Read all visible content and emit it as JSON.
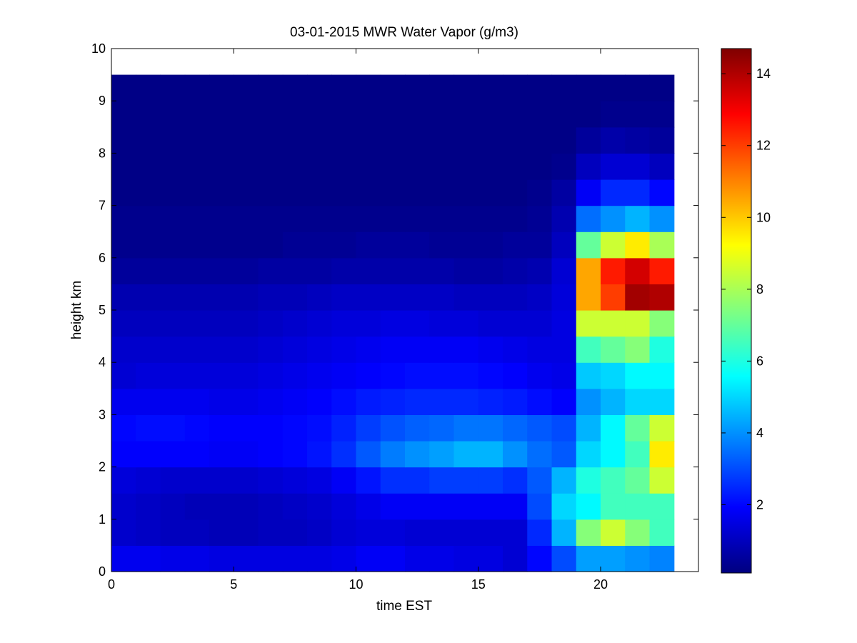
{
  "chart_data": {
    "type": "heatmap",
    "title": "03-01-2015 MWR Water Vapor (g/m3)",
    "xlabel": "time EST",
    "ylabel": "height km",
    "xlim": [
      0,
      24
    ],
    "ylim": [
      0,
      10
    ],
    "x_ticks": [
      "0",
      "5",
      "10",
      "15",
      "20"
    ],
    "y_ticks": [
      "0",
      "1",
      "2",
      "3",
      "4",
      "5",
      "6",
      "7",
      "8",
      "9",
      "10"
    ],
    "colorbar": {
      "colormap": "jet",
      "clim": [
        0.1,
        14.7
      ],
      "ticks": [
        "2",
        "4",
        "6",
        "8",
        "10",
        "12",
        "14"
      ]
    },
    "x": [
      0.5,
      1.5,
      2.5,
      3.5,
      4.5,
      5.5,
      6.5,
      7.5,
      8.5,
      9.5,
      10.5,
      11.5,
      12.5,
      13.5,
      14.5,
      15.5,
      16.5,
      17.5,
      18.5,
      19.5,
      20.5,
      21.5,
      22.5
    ],
    "y": [
      0.25,
      0.75,
      1.25,
      1.75,
      2.25,
      2.75,
      3.25,
      3.75,
      4.25,
      4.75,
      5.25,
      5.75,
      6.25,
      6.75,
      7.25,
      7.75,
      8.25,
      8.75,
      9.25
    ],
    "z": [
      [
        1.7,
        1.7,
        1.6,
        1.6,
        1.5,
        1.5,
        1.5,
        1.5,
        1.5,
        1.6,
        1.8,
        1.8,
        1.6,
        1.6,
        1.5,
        1.5,
        1.3,
        2.0,
        3.0,
        4.2,
        4.2,
        4.0,
        3.8
      ],
      [
        1.2,
        1.1,
        1.0,
        1.0,
        0.9,
        0.9,
        1.0,
        1.0,
        1.1,
        1.3,
        1.4,
        1.4,
        1.3,
        1.3,
        1.3,
        1.3,
        1.3,
        2.5,
        4.5,
        7.5,
        8.5,
        7.5,
        6.5
      ],
      [
        1.2,
        1.1,
        1.0,
        0.9,
        0.9,
        0.9,
        1.0,
        1.1,
        1.2,
        1.4,
        1.6,
        1.8,
        1.8,
        1.8,
        1.8,
        1.8,
        1.8,
        3.0,
        5.0,
        5.5,
        6.5,
        6.5,
        6.5
      ],
      [
        1.4,
        1.3,
        1.2,
        1.2,
        1.2,
        1.2,
        1.3,
        1.4,
        1.5,
        1.8,
        2.2,
        2.6,
        2.6,
        2.8,
        2.8,
        2.8,
        2.6,
        3.2,
        4.5,
        6.0,
        6.5,
        7.0,
        8.5
      ],
      [
        1.9,
        1.9,
        1.9,
        1.9,
        1.8,
        1.8,
        1.9,
        2.0,
        2.2,
        2.6,
        3.2,
        3.7,
        4.0,
        4.2,
        4.5,
        4.5,
        4.0,
        3.5,
        3.2,
        5.0,
        5.5,
        6.5,
        9.5
      ],
      [
        2.0,
        2.1,
        2.1,
        2.0,
        1.9,
        1.9,
        1.9,
        2.0,
        2.1,
        2.4,
        2.8,
        3.1,
        3.3,
        3.4,
        3.6,
        3.6,
        3.4,
        3.2,
        3.0,
        4.5,
        5.5,
        7.0,
        8.5
      ],
      [
        1.7,
        1.7,
        1.7,
        1.7,
        1.6,
        1.6,
        1.7,
        1.8,
        1.9,
        2.1,
        2.3,
        2.4,
        2.5,
        2.5,
        2.5,
        2.4,
        2.3,
        2.1,
        1.9,
        4.0,
        4.5,
        5.0,
        5.0
      ],
      [
        1.3,
        1.4,
        1.4,
        1.4,
        1.4,
        1.4,
        1.5,
        1.6,
        1.7,
        1.8,
        1.9,
        2.0,
        2.1,
        2.1,
        2.1,
        2.0,
        1.9,
        1.7,
        1.6,
        4.8,
        5.0,
        5.5,
        5.5
      ],
      [
        1.2,
        1.2,
        1.2,
        1.2,
        1.2,
        1.2,
        1.3,
        1.4,
        1.5,
        1.6,
        1.7,
        1.8,
        1.8,
        1.8,
        1.8,
        1.7,
        1.6,
        1.5,
        1.5,
        6.5,
        7.0,
        7.5,
        6.0
      ],
      [
        1.0,
        1.0,
        1.0,
        1.0,
        1.0,
        1.0,
        1.1,
        1.2,
        1.3,
        1.4,
        1.4,
        1.5,
        1.5,
        1.4,
        1.4,
        1.3,
        1.3,
        1.3,
        1.5,
        8.5,
        8.5,
        8.5,
        7.5
      ],
      [
        0.8,
        0.8,
        0.8,
        0.8,
        0.8,
        0.8,
        0.9,
        0.9,
        1.0,
        1.1,
        1.1,
        1.1,
        1.1,
        1.1,
        1.0,
        1.0,
        1.0,
        1.1,
        1.4,
        10.5,
        12.0,
        14.2,
        14.0
      ],
      [
        0.5,
        0.5,
        0.5,
        0.5,
        0.5,
        0.5,
        0.6,
        0.6,
        0.6,
        0.7,
        0.7,
        0.7,
        0.7,
        0.7,
        0.6,
        0.6,
        0.7,
        0.8,
        1.3,
        10.5,
        12.5,
        13.5,
        12.5
      ],
      [
        0.3,
        0.3,
        0.3,
        0.3,
        0.3,
        0.3,
        0.3,
        0.4,
        0.4,
        0.4,
        0.5,
        0.5,
        0.5,
        0.4,
        0.4,
        0.4,
        0.5,
        0.5,
        1.0,
        7.0,
        8.5,
        9.5,
        8.0
      ],
      [
        0.3,
        0.3,
        0.3,
        0.3,
        0.3,
        0.3,
        0.3,
        0.3,
        0.3,
        0.3,
        0.3,
        0.3,
        0.3,
        0.3,
        0.3,
        0.3,
        0.3,
        0.4,
        0.8,
        3.5,
        4.0,
        4.5,
        4.0
      ],
      [
        0.2,
        0.2,
        0.2,
        0.2,
        0.2,
        0.2,
        0.2,
        0.2,
        0.2,
        0.2,
        0.2,
        0.2,
        0.2,
        0.2,
        0.2,
        0.2,
        0.2,
        0.3,
        0.6,
        1.8,
        2.5,
        2.5,
        2.0
      ],
      [
        0.2,
        0.2,
        0.2,
        0.2,
        0.2,
        0.2,
        0.2,
        0.2,
        0.2,
        0.2,
        0.2,
        0.2,
        0.2,
        0.2,
        0.2,
        0.2,
        0.2,
        0.2,
        0.3,
        1.0,
        1.3,
        1.3,
        1.0
      ],
      [
        0.2,
        0.2,
        0.2,
        0.2,
        0.2,
        0.2,
        0.2,
        0.2,
        0.2,
        0.2,
        0.2,
        0.2,
        0.2,
        0.2,
        0.2,
        0.2,
        0.2,
        0.2,
        0.2,
        0.5,
        0.7,
        0.6,
        0.5
      ],
      [
        0.2,
        0.2,
        0.2,
        0.2,
        0.2,
        0.2,
        0.2,
        0.2,
        0.2,
        0.2,
        0.2,
        0.2,
        0.2,
        0.2,
        0.2,
        0.2,
        0.2,
        0.2,
        0.2,
        0.2,
        0.3,
        0.3,
        0.3
      ],
      [
        0.2,
        0.2,
        0.2,
        0.2,
        0.2,
        0.2,
        0.2,
        0.2,
        0.2,
        0.2,
        0.2,
        0.2,
        0.2,
        0.2,
        0.2,
        0.2,
        0.2,
        0.2,
        0.2,
        0.2,
        0.2,
        0.2,
        0.2
      ]
    ]
  }
}
